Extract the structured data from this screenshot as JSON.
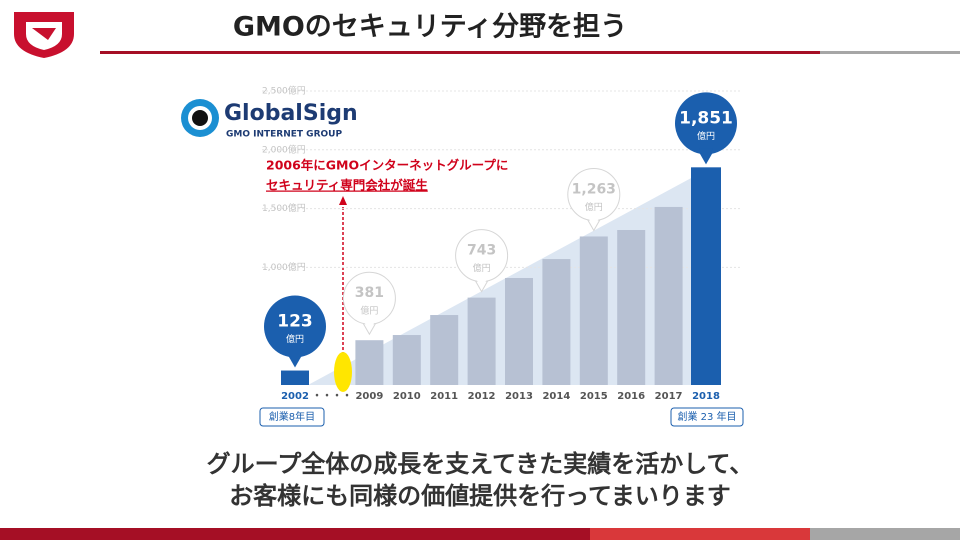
{
  "title": "GMOのセキュリティ分野を担う",
  "logo": {
    "name": "GlobalSign",
    "sub": "GMO INTERNET GROUP"
  },
  "message": [
    "グループ全体の成長を支えてきた実績を活かして、",
    "お客様にも同様の価値提供を行ってまいります"
  ],
  "chart_data": {
    "type": "bar",
    "categories": [
      "2002",
      "・・・・",
      "2009",
      "2010",
      "2011",
      "2012",
      "2013",
      "2014",
      "2015",
      "2016",
      "2017",
      "2018"
    ],
    "values": [
      123,
      null,
      381,
      425,
      595,
      743,
      910,
      1071,
      1263,
      1318,
      1514,
      1851
    ],
    "value_labels": [
      "123",
      null,
      "381",
      null,
      null,
      "743",
      null,
      null,
      "1,263",
      null,
      null,
      "1,851"
    ],
    "value_unit": "億円",
    "colors": [
      "#1b5fae",
      null,
      "#b7c1d3",
      "#b7c1d3",
      "#b7c1d3",
      "#b7c1d3",
      "#b7c1d3",
      "#b7c1d3",
      "#b7c1d3",
      "#b7c1d3",
      "#b7c1d3",
      "#1b5fae"
    ],
    "highlight_color": "#1b5fae",
    "ylim": [
      0,
      2500
    ],
    "yticks": [
      {
        "value": 1000,
        "label": "1,000億円"
      },
      {
        "value": 1500,
        "label": "1,500億円"
      },
      {
        "value": 2000,
        "label": "2,000億円"
      },
      {
        "value": 2500,
        "label": "2,500億円"
      }
    ],
    "grid": true,
    "annotation": [
      "2006年にGMOインターネットグループに",
      "セキュリティ専門会社が誕生"
    ],
    "milestones": [
      "創業8年目",
      "創業 23 年目"
    ]
  }
}
